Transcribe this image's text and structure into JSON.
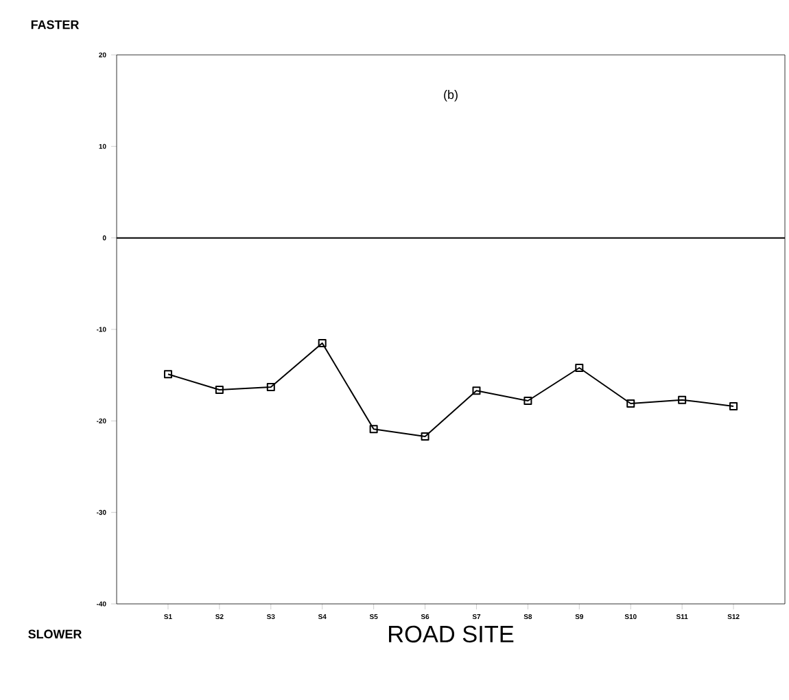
{
  "chart_data": {
    "type": "line",
    "title": "(b)",
    "xlabel": "ROAD SITE",
    "categories": [
      "S1",
      "S2",
      "S3",
      "S4",
      "S5",
      "S6",
      "S7",
      "S8",
      "S9",
      "S10",
      "S11",
      "S12"
    ],
    "series": [
      {
        "color": "#000000",
        "values": [
          -14.9,
          -16.6,
          -16.3,
          -11.5,
          -20.9,
          -21.7,
          -16.7,
          -17.8,
          -14.2,
          -18.1,
          -17.7,
          -18.4
        ]
      }
    ],
    "ylim": [
      -40,
      20
    ],
    "yticks": [
      -40,
      -30,
      -20,
      -10,
      0,
      10,
      20
    ],
    "ref_lines": [
      {
        "axis": "y",
        "value": 0,
        "color": "#000000"
      }
    ],
    "annotations": [
      "FASTER",
      "SLOWER"
    ],
    "marker": "square",
    "line_style": "solid"
  }
}
